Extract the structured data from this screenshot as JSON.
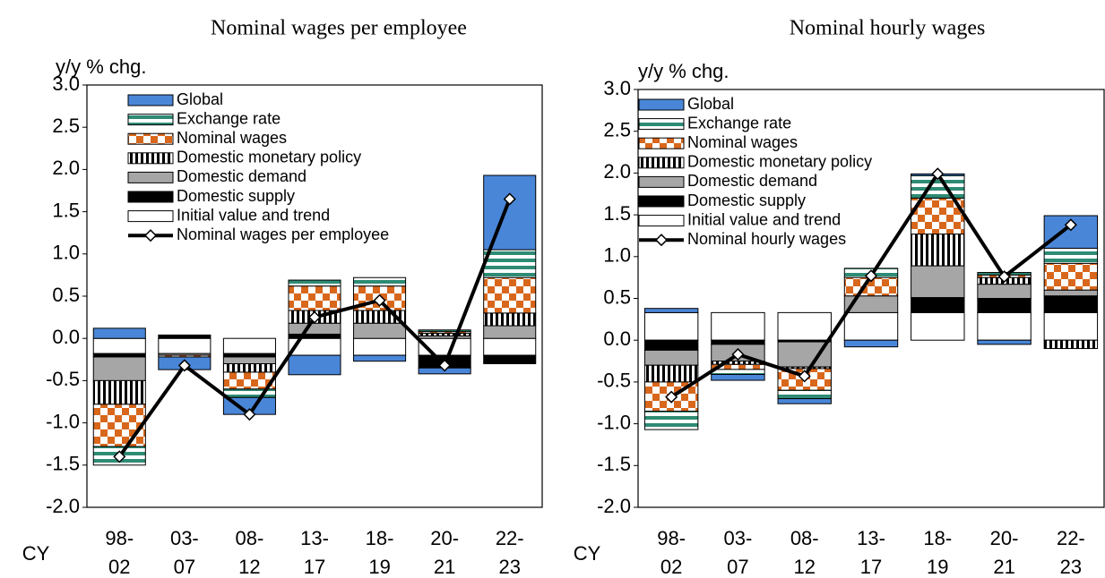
{
  "chart_data": [
    {
      "type": "bar",
      "stacked": true,
      "title": "Nominal wages per employee",
      "y_label": "y/y % chg.",
      "x_label": "CY",
      "categories": [
        "98-\n02",
        "03-\n07",
        "08-\n12",
        "13-\n17",
        "18-\n19",
        "20-\n21",
        "22-\n23"
      ],
      "series": [
        {
          "name": "Global",
          "color": "#4a86d8",
          "pattern": "solid",
          "values": [
            0.12,
            -0.15,
            -0.2,
            -0.23,
            -0.07,
            -0.07,
            0.88
          ]
        },
        {
          "name": "Exchange rate",
          "color": "#2e8b74",
          "pattern": "hstripes",
          "values": [
            -0.22,
            0,
            -0.1,
            0.07,
            0.1,
            0.02,
            0.33
          ]
        },
        {
          "name": "Nominal wages",
          "color": "#d8671c",
          "pattern": "checker",
          "values": [
            -0.5,
            -0.02,
            -0.2,
            0.29,
            0.29,
            0.02,
            0.42
          ]
        },
        {
          "name": "Domestic monetary policy",
          "color": "#000000",
          "pattern": "vstripes",
          "values": [
            -0.28,
            0,
            -0.1,
            0.15,
            0.15,
            0.03,
            0.15
          ]
        },
        {
          "name": "Domestic demand",
          "color": "#a6a6a6",
          "pattern": "solid",
          "values": [
            -0.28,
            -0.02,
            -0.08,
            0.13,
            0.18,
            0.03,
            0.15
          ]
        },
        {
          "name": "Domestic supply",
          "color": "#000000",
          "pattern": "solid",
          "values": [
            -0.04,
            0.04,
            -0.04,
            0.05,
            0,
            -0.15,
            -0.1
          ]
        },
        {
          "name": "Initial value and trend",
          "color": "#ffffff",
          "pattern": "solid",
          "values": [
            -0.18,
            -0.18,
            -0.18,
            -0.2,
            -0.2,
            -0.2,
            -0.2
          ]
        }
      ],
      "line": {
        "name": "Nominal wages per employee",
        "color": "#000000",
        "values": [
          -1.4,
          -0.32,
          -0.9,
          0.25,
          0.45,
          -0.32,
          1.65
        ]
      },
      "ylim": [
        -2,
        3
      ],
      "yticks": [
        {
          "value": -2,
          "label": "-2.0"
        },
        -1.5,
        {
          "value": -1,
          "label": "-1.0"
        },
        -0.5,
        {
          "value": 0,
          "label": "0.0"
        },
        0.5,
        {
          "value": 1,
          "label": "1.0"
        },
        1.5,
        {
          "value": 2,
          "label": "2.0"
        },
        2.5,
        {
          "value": 3,
          "label": "3.0"
        }
      ]
    },
    {
      "type": "bar",
      "stacked": true,
      "title": "Nominal hourly wages",
      "y_label": "y/y % chg.",
      "x_label": "CY",
      "categories": [
        "98-\n02",
        "03-\n07",
        "08-\n12",
        "13-\n17",
        "18-\n19",
        "20-\n21",
        "22-\n23"
      ],
      "series": [
        {
          "name": "Global",
          "color": "#4a86d8",
          "pattern": "solid",
          "values": [
            0.05,
            -0.07,
            -0.06,
            -0.08,
            0.02,
            -0.05,
            0.39
          ]
        },
        {
          "name": "Exchange rate",
          "color": "#2e8b74",
          "pattern": "hstripes",
          "values": [
            -0.22,
            -0.06,
            -0.1,
            0.11,
            0.27,
            0.03,
            0.18
          ]
        },
        {
          "name": "Nominal wages",
          "color": "#d8671c",
          "pattern": "checker",
          "values": [
            -0.35,
            -0.06,
            -0.26,
            0.22,
            0.43,
            0.03,
            0.32
          ]
        },
        {
          "name": "Domestic monetary policy",
          "color": "#000000",
          "pattern": "vstripes",
          "values": [
            -0.2,
            -0.04,
            -0.02,
            0,
            0.38,
            0.08,
            -0.1
          ]
        },
        {
          "name": "Domestic demand",
          "color": "#a6a6a6",
          "pattern": "solid",
          "values": [
            -0.18,
            -0.2,
            -0.3,
            0.2,
            0.38,
            0.17,
            0.07
          ]
        },
        {
          "name": "Domestic supply",
          "color": "#000000",
          "pattern": "solid",
          "values": [
            -0.12,
            -0.05,
            -0.02,
            0,
            0.18,
            0.17,
            0.2
          ]
        },
        {
          "name": "Initial value and trend",
          "color": "#ffffff",
          "pattern": "solid",
          "values": [
            0.33,
            0.33,
            0.33,
            0.33,
            0.33,
            0.33,
            0.33
          ]
        }
      ],
      "line": {
        "name": "Nominal hourly wages",
        "color": "#000000",
        "values": [
          -0.68,
          -0.17,
          -0.43,
          0.77,
          1.99,
          0.76,
          1.38
        ]
      },
      "ylim": [
        -2,
        3
      ],
      "yticks": [
        {
          "value": -2,
          "label": "-2.0"
        },
        -1.5,
        {
          "value": -1,
          "label": "-1.0"
        },
        -0.5,
        {
          "value": 0,
          "label": "0.0"
        },
        0.5,
        {
          "value": 1,
          "label": "1.0"
        },
        1.5,
        {
          "value": 2,
          "label": "2.0"
        },
        2.5,
        {
          "value": 3,
          "label": "3.0"
        }
      ]
    }
  ]
}
